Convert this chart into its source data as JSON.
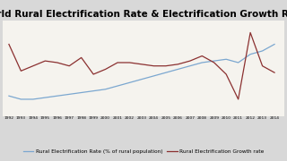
{
  "title": "World Rural Electrification Rate & Electrification Growth Rate",
  "years": [
    1992,
    1993,
    1994,
    1995,
    1996,
    1997,
    1998,
    1999,
    2000,
    2001,
    2002,
    2003,
    2004,
    2005,
    2006,
    2007,
    2008,
    2009,
    2010,
    2011,
    2012,
    2013,
    2014
  ],
  "electrification_rate": [
    37,
    35,
    35,
    36,
    37,
    38,
    39,
    40,
    41,
    43,
    45,
    47,
    49,
    51,
    53,
    55,
    57,
    58,
    59,
    57,
    62,
    64,
    68
  ],
  "growth_rate": [
    68,
    52,
    55,
    58,
    57,
    55,
    60,
    50,
    53,
    57,
    57,
    56,
    55,
    55,
    56,
    58,
    61,
    57,
    50,
    35,
    75,
    55,
    51
  ],
  "rate_color": "#7BA7D0",
  "growth_color": "#8B3030",
  "bg_color": "#d8d8d8",
  "plot_bg_color": "#f5f3ee",
  "legend_rate": "Rural Electrification Rate (% of rural population)",
  "legend_growth": "Rural Electrification Growth rate",
  "title_fontsize": 7.5,
  "label_fontsize": 4.2,
  "ylim_min": 25,
  "ylim_max": 82
}
